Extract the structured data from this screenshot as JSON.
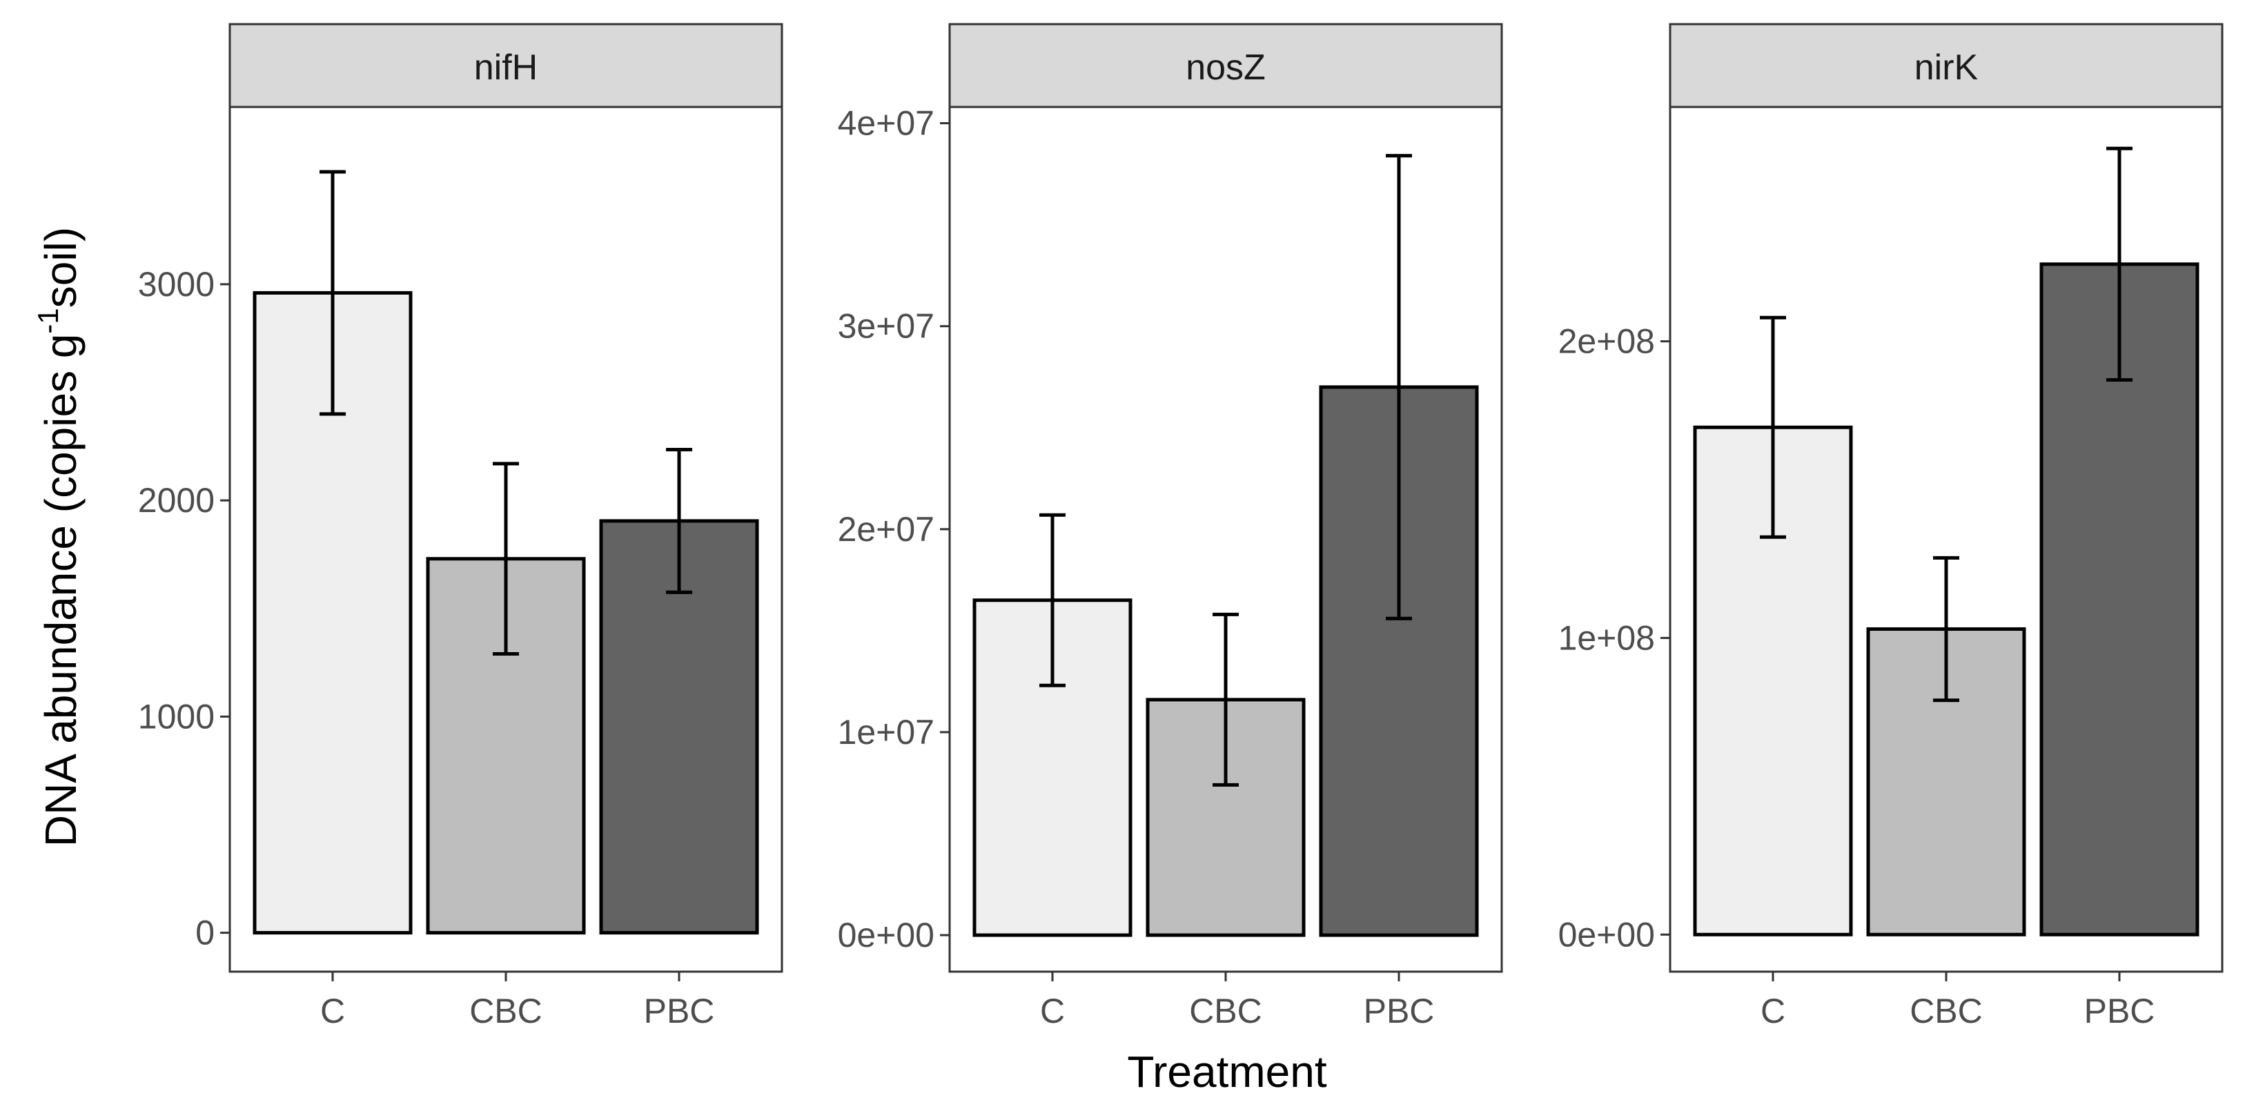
{
  "chart_data": {
    "type": "bar",
    "xlabel": "Treatment",
    "ylabel_parts": [
      "DNA abundance (copies g",
      "-1",
      "soil)"
    ],
    "categories": [
      "C",
      "CBC",
      "PBC"
    ],
    "fill_colors": [
      "#efefef",
      "#bebebe",
      "#636363"
    ],
    "panel_bg": "#ffffff",
    "strip_bg": "#d9d9d9",
    "facets": [
      {
        "name": "nifH",
        "ylim": [
          -180,
          3820
        ],
        "yticks": [
          0,
          1000,
          2000,
          3000
        ],
        "ytick_labels": [
          "0",
          "1000",
          "2000",
          "3000"
        ],
        "values": [
          2960,
          1730,
          1905
        ],
        "err_low": [
          2400,
          1290,
          1575
        ],
        "err_high": [
          3520,
          2170,
          2235
        ]
      },
      {
        "name": "nosZ",
        "ylim": [
          -1800000,
          40800000
        ],
        "yticks": [
          0,
          10000000,
          20000000,
          30000000,
          40000000
        ],
        "ytick_labels": [
          "0e+00",
          "1e+07",
          "2e+07",
          "3e+07",
          "4e+07"
        ],
        "values": [
          16500000,
          11600000,
          27000000
        ],
        "err_low": [
          12300000,
          7400000,
          15600000
        ],
        "err_high": [
          20700000,
          15800000,
          38400000
        ]
      },
      {
        "name": "nirK",
        "ylim": [
          -12500000,
          279000000
        ],
        "yticks": [
          0,
          100000000,
          200000000
        ],
        "ytick_labels": [
          "0e+00",
          "1e+08",
          "2e+08"
        ],
        "values": [
          171000000,
          103000000,
          226000000
        ],
        "err_low": [
          134000000,
          79000000,
          187000000
        ],
        "err_high": [
          208000000,
          127000000,
          265000000
        ]
      }
    ]
  }
}
